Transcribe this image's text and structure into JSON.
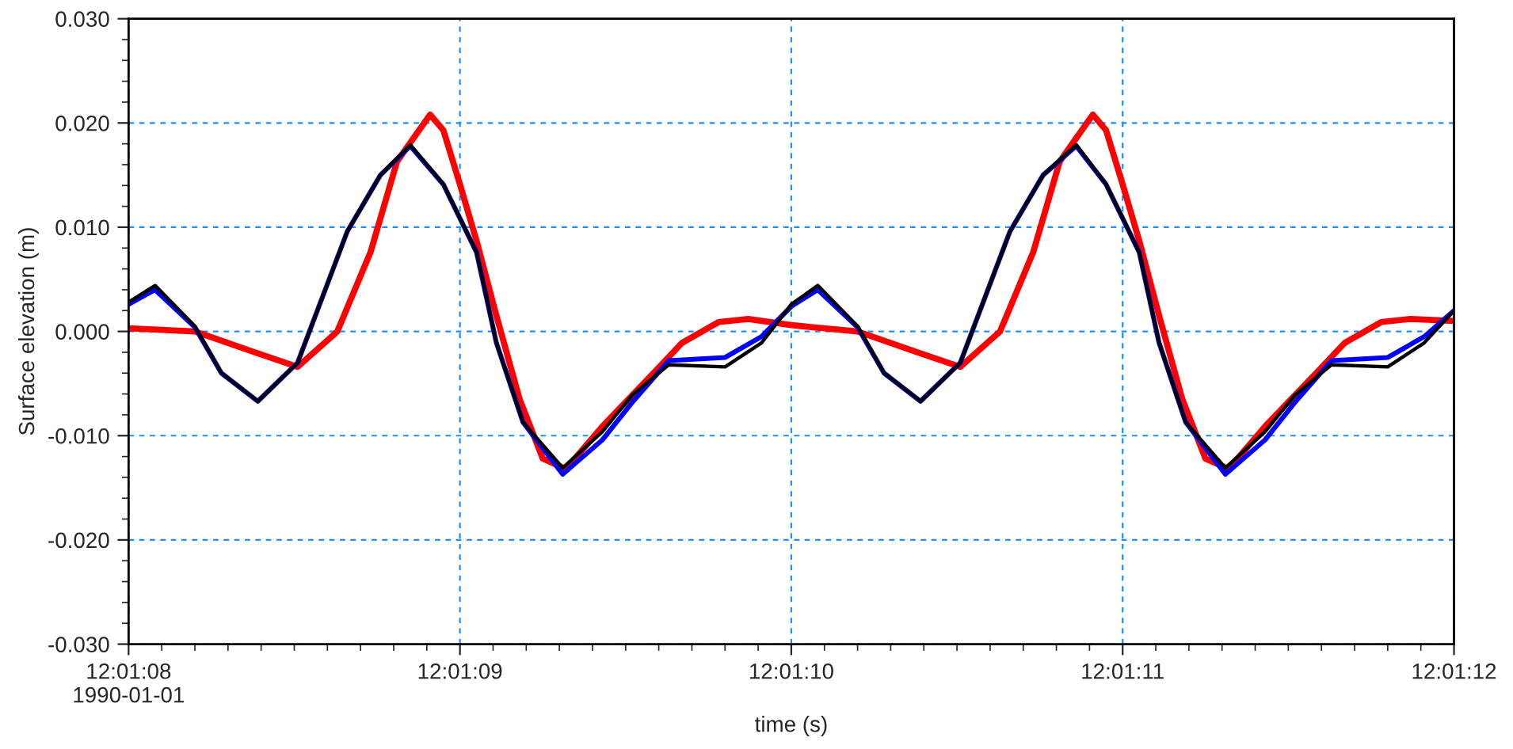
{
  "chart_data": {
    "type": "line",
    "xlabel": "time (s)",
    "ylabel": "Surface elevation (m)",
    "xlim": [
      43268,
      43272
    ],
    "ylim": [
      -0.03,
      0.03
    ],
    "xticks": [
      {
        "value": 43268,
        "label": "12:01:08\n1990-01-01"
      },
      {
        "value": 43269,
        "label": "12:01:09"
      },
      {
        "value": 43270,
        "label": "12:01:10"
      },
      {
        "value": 43271,
        "label": "12:01:11"
      },
      {
        "value": 43272,
        "label": "12:01:12"
      }
    ],
    "yticks": [
      {
        "value": -0.03,
        "label": "-0.030"
      },
      {
        "value": -0.02,
        "label": "-0.020"
      },
      {
        "value": -0.01,
        "label": "-0.010"
      },
      {
        "value": 0,
        "label": "0.000"
      },
      {
        "value": 0.01,
        "label": "0.010"
      },
      {
        "value": 0.02,
        "label": "0.020"
      },
      {
        "value": 0.03,
        "label": "0.030"
      }
    ],
    "grid": true,
    "line_style": "solid",
    "marker": "none",
    "series": [
      {
        "color": "#ff0000",
        "x": [
          43268.0,
          43268.2,
          43268.38,
          43268.51,
          43268.63,
          43268.73,
          43268.81,
          43268.91,
          43268.95,
          43269.0,
          43269.05,
          43269.11,
          43269.18,
          43269.25,
          43269.32,
          43269.43,
          43269.59,
          43269.67,
          43269.78,
          43269.87,
          43270.0,
          43270.2,
          43270.38,
          43270.51,
          43270.63,
          43270.73,
          43270.81,
          43270.91,
          43270.95,
          43271.0,
          43271.05,
          43271.11,
          43271.18,
          43271.25,
          43271.32,
          43271.43,
          43271.59,
          43271.67,
          43271.78,
          43271.87,
          43272.0
        ],
        "values": [
          0.0003,
          0.0,
          -0.002,
          -0.0034,
          0.0,
          0.0076,
          0.0163,
          0.0208,
          0.0193,
          0.0141,
          0.0087,
          0.0015,
          -0.0065,
          -0.0122,
          -0.0132,
          -0.0091,
          -0.0038,
          -0.0011,
          0.0009,
          0.0012,
          0.0006,
          0.0,
          -0.002,
          -0.0034,
          0.0,
          0.0076,
          0.0163,
          0.0208,
          0.0193,
          0.0141,
          0.0087,
          0.0015,
          -0.0065,
          -0.0122,
          -0.0132,
          -0.0091,
          -0.0038,
          -0.0011,
          0.0009,
          0.0012,
          0.001
        ]
      },
      {
        "color": "#0000ff",
        "x": [
          43268.0,
          43268.08,
          43268.2,
          43268.28,
          43268.39,
          43268.51,
          43268.66,
          43268.76,
          43268.85,
          43268.95,
          43269.05,
          43269.11,
          43269.19,
          43269.31,
          43269.43,
          43269.52,
          43269.63,
          43269.8,
          43269.91,
          43270.0,
          43270.08,
          43270.2,
          43270.28,
          43270.39,
          43270.51,
          43270.66,
          43270.76,
          43270.86,
          43270.95,
          43271.05,
          43271.11,
          43271.19,
          43271.31,
          43271.43,
          43271.52,
          43271.63,
          43271.8,
          43271.91,
          43272.0
        ],
        "values": [
          0.0026,
          0.004,
          0.0004,
          -0.004,
          -0.0067,
          -0.003,
          0.0096,
          0.015,
          0.0178,
          0.0141,
          0.0076,
          -0.0011,
          -0.0087,
          -0.0137,
          -0.0104,
          -0.0068,
          -0.0028,
          -0.0025,
          -0.0005,
          0.0024,
          0.004,
          0.0004,
          -0.004,
          -0.0067,
          -0.003,
          0.0096,
          0.015,
          0.0178,
          0.0141,
          0.0076,
          -0.0011,
          -0.0087,
          -0.0137,
          -0.0104,
          -0.0068,
          -0.0028,
          -0.0025,
          -0.0005,
          0.002
        ]
      },
      {
        "color": "#000000",
        "x": [
          43268.0,
          43268.08,
          43268.2,
          43268.28,
          43268.39,
          43268.51,
          43268.66,
          43268.76,
          43268.85,
          43268.95,
          43269.05,
          43269.11,
          43269.19,
          43269.31,
          43269.43,
          43269.52,
          43269.63,
          43269.8,
          43269.91,
          43270.0,
          43270.08,
          43270.2,
          43270.28,
          43270.39,
          43270.51,
          43270.66,
          43270.76,
          43270.86,
          43270.95,
          43271.05,
          43271.11,
          43271.19,
          43271.31,
          43271.43,
          43271.52,
          43271.63,
          43271.8,
          43271.91,
          43272.0
        ],
        "values": [
          0.0028,
          0.0044,
          0.0005,
          -0.004,
          -0.0067,
          -0.003,
          0.0096,
          0.015,
          0.0179,
          0.0141,
          0.0076,
          -0.0011,
          -0.0087,
          -0.0131,
          -0.0096,
          -0.0061,
          -0.0032,
          -0.0034,
          -0.0011,
          0.0026,
          0.0044,
          0.0005,
          -0.004,
          -0.0067,
          -0.003,
          0.0096,
          0.015,
          0.0179,
          0.0141,
          0.0076,
          -0.0011,
          -0.0087,
          -0.0131,
          -0.0096,
          -0.0061,
          -0.0032,
          -0.0034,
          -0.0011,
          0.002
        ]
      }
    ]
  }
}
